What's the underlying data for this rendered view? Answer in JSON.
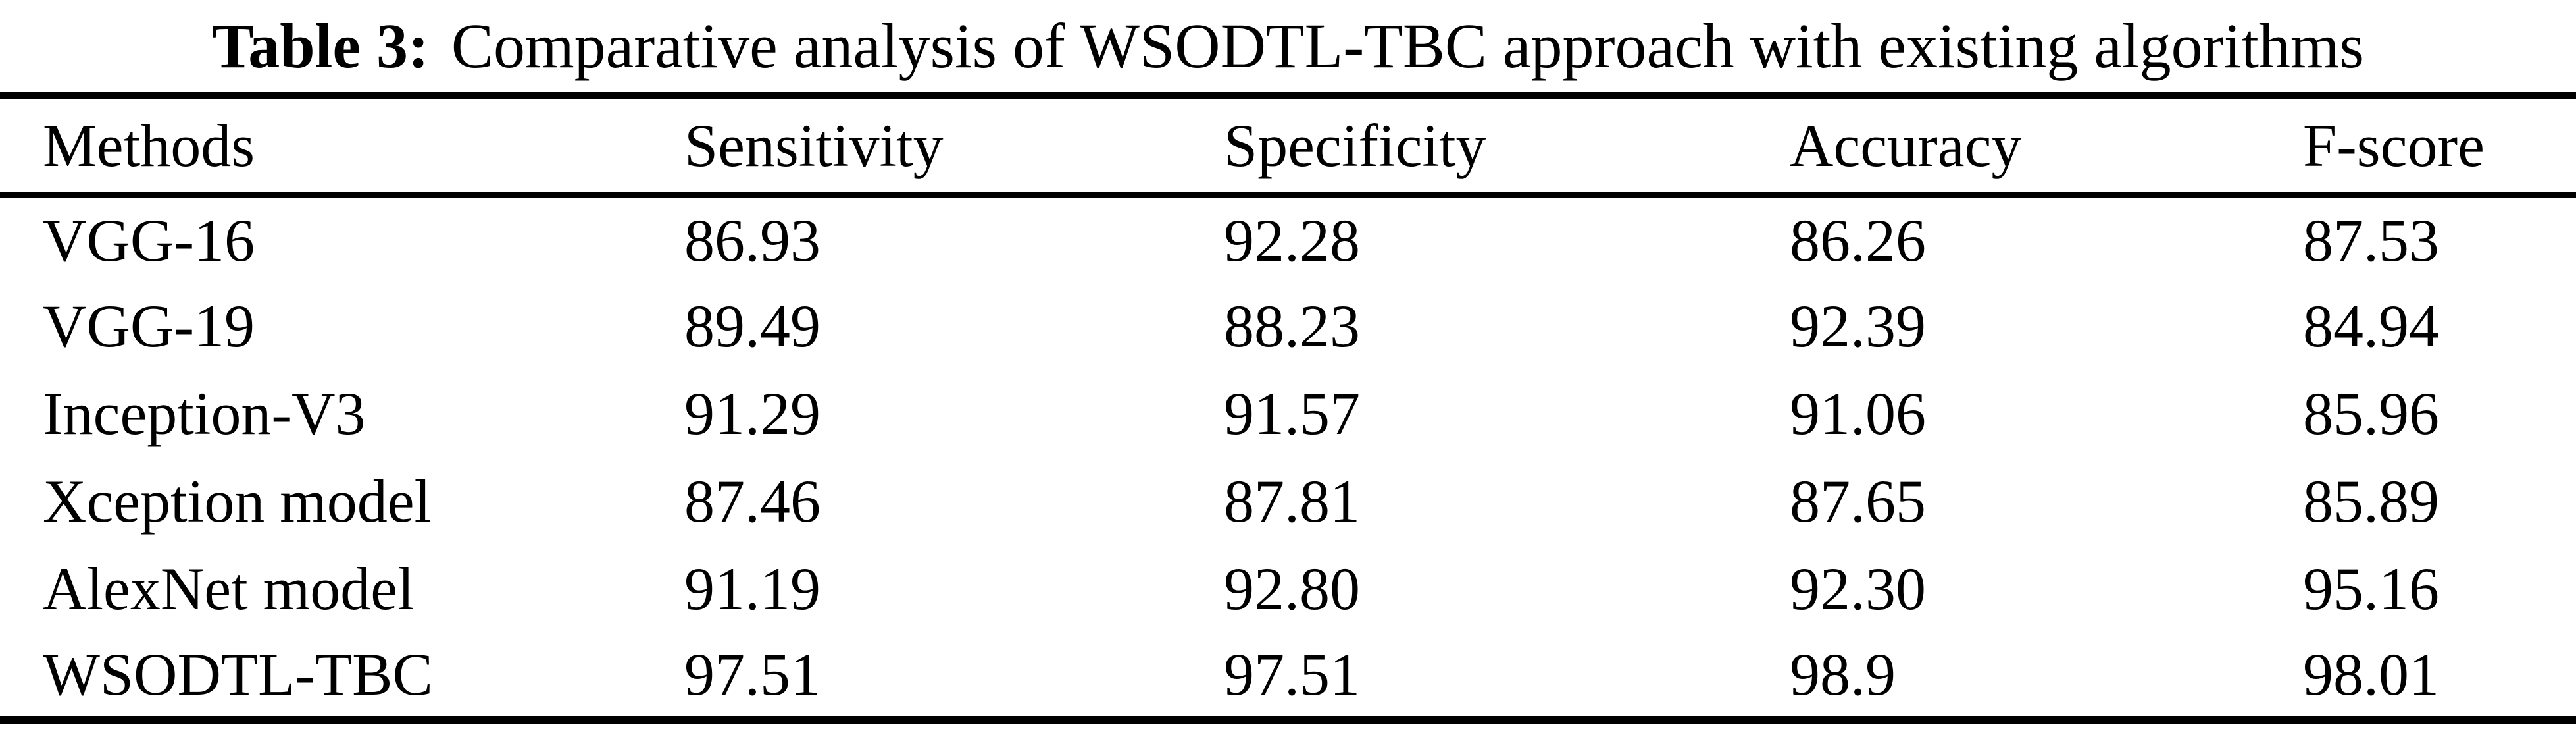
{
  "caption": {
    "label": "Table 3:",
    "text": "Comparative analysis of WSODTL-TBC approach with existing algorithms"
  },
  "table": {
    "columns": [
      "Methods",
      "Sensitivity",
      "Specificity",
      "Accuracy",
      "F-score"
    ],
    "rows": [
      {
        "cells": [
          "VGG-16",
          "86.93",
          "92.28",
          "86.26",
          "87.53"
        ]
      },
      {
        "cells": [
          "VGG-19",
          "89.49",
          "88.23",
          "92.39",
          "84.94"
        ]
      },
      {
        "cells": [
          "Inception-V3",
          "91.29",
          "91.57",
          "91.06",
          "85.96"
        ]
      },
      {
        "cells": [
          "Xception model",
          "87.46",
          "87.81",
          "87.65",
          "85.89"
        ]
      },
      {
        "cells": [
          "AlexNet model",
          "91.19",
          "92.80",
          "92.30",
          "95.16"
        ]
      },
      {
        "cells": [
          "WSODTL-TBC",
          "97.51",
          "97.51",
          "98.9",
          "98.01"
        ]
      }
    ]
  },
  "chart_data": {
    "type": "table",
    "title": "Table 3: Comparative analysis of WSODTL-TBC approach with existing algorithms",
    "columns": [
      "Methods",
      "Sensitivity",
      "Specificity",
      "Accuracy",
      "F-score"
    ],
    "rows": [
      [
        "VGG-16",
        86.93,
        92.28,
        86.26,
        87.53
      ],
      [
        "VGG-19",
        89.49,
        88.23,
        92.39,
        84.94
      ],
      [
        "Inception-V3",
        91.29,
        91.57,
        91.06,
        85.96
      ],
      [
        "Xception model",
        87.46,
        87.81,
        87.65,
        85.89
      ],
      [
        "AlexNet model",
        91.19,
        92.8,
        92.3,
        95.16
      ],
      [
        "WSODTL-TBC",
        97.51,
        97.51,
        98.9,
        98.01
      ]
    ]
  },
  "colors": {
    "background": "#ffffff",
    "text": "#000000",
    "rule": "#000000"
  }
}
